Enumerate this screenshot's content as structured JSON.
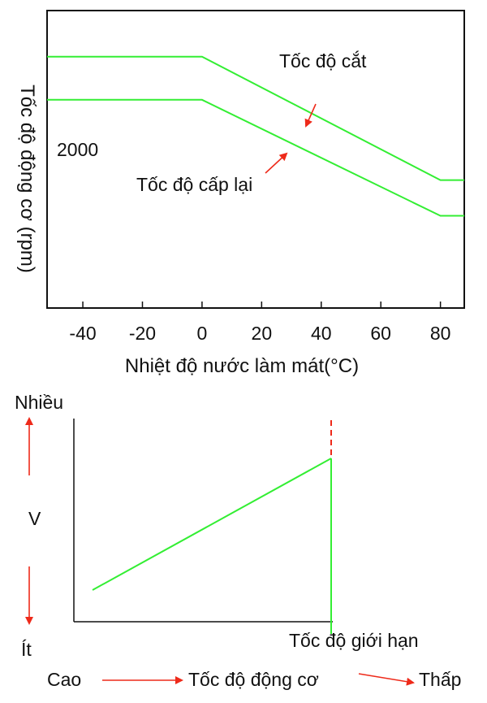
{
  "colors": {
    "line": "#33ee33",
    "arrow": "#ee2a1a",
    "axis": "#111111"
  },
  "chart_data": [
    {
      "type": "line",
      "xlabel": "Nhiệt độ nước làm mát(°C)",
      "ylabel": "Tốc độ động cơ (rpm)",
      "x_ticks": [
        "-40",
        "-20",
        "0",
        "20",
        "40",
        "60",
        "80"
      ],
      "xlim": [
        -52,
        88
      ],
      "y_annotation": "2000",
      "grid": false,
      "series": [
        {
          "name": "Tốc độ cắt",
          "points": [
            [
              -52,
              0.845
            ],
            [
              0,
              0.845
            ],
            [
              80,
              0.43
            ],
            [
              88,
              0.43
            ]
          ]
        },
        {
          "name": "Tốc độ cấp lại",
          "points": [
            [
              -52,
              0.7
            ],
            [
              0,
              0.7
            ],
            [
              80,
              0.31
            ],
            [
              88,
              0.31
            ]
          ]
        }
      ]
    },
    {
      "type": "line",
      "ylabel": "V",
      "y_top_label": "Nhiều",
      "y_bottom_label": "Ít",
      "xlabel": "Tốc độ động cơ",
      "x_left_label": "Cao",
      "x_right_label": "Thấp",
      "annotation": "Tốc độ giới hạn",
      "series": [
        {
          "points": [
            [
              0.07,
              0.07
            ],
            [
              0.99,
              0.84
            ]
          ]
        }
      ],
      "limit_x": 0.99
    }
  ]
}
